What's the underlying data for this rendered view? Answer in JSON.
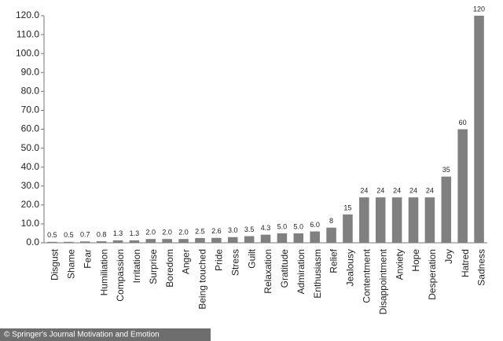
{
  "chart_data": {
    "type": "bar",
    "categories": [
      "Disgust",
      "Shame",
      "Fear",
      "Humiliation",
      "Compassion",
      "Irritation",
      "Surprise",
      "Boredom",
      "Anger",
      "Being touched",
      "Pride",
      "Stress",
      "Guilt",
      "Relaxation",
      "Gratitude",
      "Admiration",
      "Enthusiasm",
      "Relief",
      "Jealousy",
      "Contentment",
      "Disappointment",
      "Anxiety",
      "Hope",
      "Desperation",
      "Joy",
      "Hatred",
      "Sadness"
    ],
    "values": [
      0.5,
      0.5,
      0.7,
      0.8,
      1.3,
      1.3,
      2.0,
      2.0,
      2.0,
      2.5,
      2.6,
      3.0,
      3.5,
      4.3,
      5.0,
      5.0,
      6.0,
      8,
      15,
      24,
      24,
      24,
      24,
      24,
      35,
      60,
      120
    ],
    "value_labels": [
      "0.5",
      "0.5",
      "0.7",
      "0.8",
      "1.3",
      "1.3",
      "2.0",
      "2.0",
      "2.0",
      "2.5",
      "2.6",
      "3.0",
      "3.5",
      "4.3",
      "5.0",
      "5.0",
      "6.0",
      "8",
      "15",
      "24",
      "24",
      "24",
      "24",
      "24",
      "35",
      "60",
      "120"
    ],
    "color": "#808080",
    "ylim": [
      0,
      120
    ],
    "yticks": [
      {
        "value": 0,
        "label": "0.0"
      },
      {
        "value": 10,
        "label": "10.0"
      },
      {
        "value": 20,
        "label": "20.0"
      },
      {
        "value": 30,
        "label": "30.0"
      },
      {
        "value": 40,
        "label": "40.0"
      },
      {
        "value": 50,
        "label": "50.0"
      },
      {
        "value": 60,
        "label": "60.0"
      },
      {
        "value": 70,
        "label": "70.0"
      },
      {
        "value": 80,
        "label": "80.0"
      },
      {
        "value": 90,
        "label": "90.0"
      },
      {
        "value": 100,
        "label": "100.0"
      },
      {
        "value": 110,
        "label": "110.0"
      },
      {
        "value": 120,
        "label": "120.0"
      }
    ],
    "grid": false,
    "source": "© Springer's Journal Motivation and Emotion"
  }
}
